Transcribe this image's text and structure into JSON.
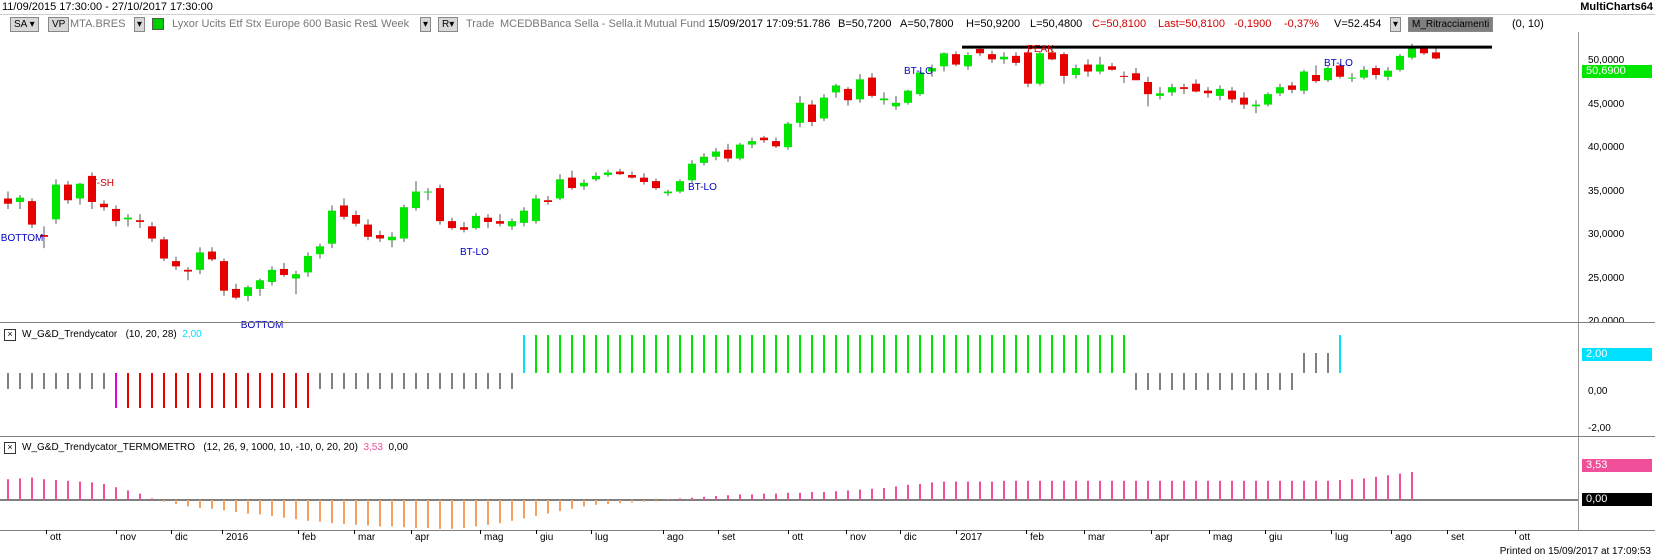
{
  "window": {
    "date_range": "11/09/2015 17:30:00 - 27/10/2017 17:30:00",
    "app_name": "MultiCharts64"
  },
  "toolbar": {
    "sa_label": "SA",
    "vp_label": "VP",
    "symbol": "MTA.BRES",
    "instrument": "Lyxor Ucits Etf Stx Europe 600 Basic Res",
    "period": "1 Week",
    "r_label": "R",
    "trade": "Trade",
    "exchange": "MCEDB",
    "broker": "Banca Sella - Sella.it",
    "fund": "Mutual Fund",
    "datetime": "15/09/2017  17:09:51.786",
    "bid": "B=50,7200",
    "ask": "A=50,7800",
    "high": "H=50,9200",
    "low": "L=50,4800",
    "close": "C=50,8100",
    "last": "Last=50,8100",
    "change": "-0,1900",
    "change_pct": "-0,37%",
    "volume": "V=52.454",
    "indicator": "M_Ritracciamenti",
    "indicator_params": "(0, 10)"
  },
  "main_pane": {
    "y_labels": [
      "50,0000",
      "45,0000",
      "40,0000",
      "35,0000",
      "30,0000",
      "25,0000",
      "20,0000"
    ],
    "last_price_badge": "50,6900",
    "annotations": [
      {
        "text": "T-SH",
        "color": "#d00000"
      },
      {
        "text": "BOTTOM",
        "color": "#0000c0"
      },
      {
        "text": "BOTTOM",
        "color": "#0000c0"
      },
      {
        "text": "BT-LO",
        "color": "#0000c0"
      },
      {
        "text": "BT-LO",
        "color": "#0000c0"
      },
      {
        "text": "BT-LO",
        "color": "#0000c0"
      },
      {
        "text": "PEAK",
        "color": "#d00000"
      },
      {
        "text": "BT-LO",
        "color": "#0000c0"
      }
    ]
  },
  "osc1": {
    "name": "W_G&D_Trendycator",
    "params": "(10, 20, 28)",
    "value": "2,00",
    "y_labels": [
      "2,00",
      "0,00",
      "-2,00"
    ]
  },
  "osc2": {
    "name": "W_G&D_Trendycator_TERMOMETRO",
    "params": "(12, 26, 9, 1000, 10, -10, 0, 20, 20)",
    "value": "3,53",
    "value2": "0,00",
    "y_labels": [
      "3,53",
      "0,00"
    ]
  },
  "x_axis": [
    "ott",
    "nov",
    "dic",
    "2016",
    "feb",
    "mar",
    "apr",
    "mag",
    "giu",
    "lug",
    "ago",
    "set",
    "ott",
    "nov",
    "dic",
    "2017",
    "feb",
    "mar",
    "apr",
    "mag",
    "giu",
    "lug",
    "ago",
    "set",
    "ott"
  ],
  "footer": {
    "printed": "Printed on 15/09/2017 at 17:09:53"
  },
  "colors": {
    "up": "#00e600",
    "down": "#e60000",
    "gray": "#808080",
    "cyan": "#00e0ff",
    "magenta": "#e000e0",
    "pink": "#f0509a",
    "orange": "#f5a060"
  },
  "chart_data": {
    "type": "candlestick",
    "price_ylim": [
      20,
      53
    ],
    "candles": [
      [
        34.2,
        35.0,
        33.0,
        33.6
      ],
      [
        33.8,
        34.6,
        33.0,
        34.3
      ],
      [
        33.9,
        34.2,
        30.8,
        31.2
      ],
      [
        30.0,
        31.0,
        28.5,
        29.8
      ],
      [
        31.8,
        36.4,
        31.3,
        35.8
      ],
      [
        35.8,
        36.2,
        33.6,
        34.0
      ],
      [
        34.2,
        36.0,
        33.5,
        35.9
      ],
      [
        36.8,
        37.2,
        33.0,
        33.8
      ],
      [
        33.6,
        34.0,
        32.8,
        33.2
      ],
      [
        33.0,
        33.4,
        31.0,
        31.6
      ],
      [
        31.8,
        32.4,
        31.0,
        32.0
      ],
      [
        31.7,
        32.4,
        30.8,
        31.5
      ],
      [
        31.0,
        31.5,
        29.2,
        29.6
      ],
      [
        29.5,
        29.8,
        27.0,
        27.3
      ],
      [
        27.0,
        27.5,
        26.0,
        26.4
      ],
      [
        26.0,
        26.3,
        24.8,
        25.8
      ],
      [
        26.0,
        28.6,
        25.5,
        28.0
      ],
      [
        28.1,
        28.6,
        27.0,
        27.2
      ],
      [
        27.0,
        27.3,
        23.0,
        23.6
      ],
      [
        23.8,
        24.4,
        22.6,
        22.8
      ],
      [
        23.0,
        24.2,
        22.4,
        24.0
      ],
      [
        23.8,
        25.0,
        23.0,
        24.8
      ],
      [
        24.6,
        26.4,
        24.2,
        26.0
      ],
      [
        26.1,
        26.8,
        25.2,
        25.4
      ],
      [
        25.0,
        25.9,
        23.2,
        25.5
      ],
      [
        25.7,
        28.0,
        25.2,
        27.6
      ],
      [
        27.8,
        29.0,
        27.3,
        28.7
      ],
      [
        29.0,
        33.4,
        28.5,
        32.8
      ],
      [
        33.4,
        34.2,
        31.8,
        32.1
      ],
      [
        32.3,
        32.8,
        31.0,
        31.3
      ],
      [
        31.2,
        31.8,
        29.4,
        29.8
      ],
      [
        30.0,
        30.5,
        29.2,
        29.6
      ],
      [
        29.4,
        30.3,
        28.6,
        29.8
      ],
      [
        29.6,
        33.5,
        29.2,
        33.2
      ],
      [
        33.1,
        36.2,
        32.8,
        35.0
      ],
      [
        35.0,
        35.4,
        34.0,
        35.0
      ],
      [
        35.4,
        35.8,
        31.2,
        31.6
      ],
      [
        31.6,
        32.0,
        30.6,
        30.8
      ],
      [
        30.9,
        31.5,
        30.3,
        30.6
      ],
      [
        30.8,
        32.5,
        30.6,
        32.2
      ],
      [
        32.0,
        32.4,
        30.8,
        31.5
      ],
      [
        31.6,
        32.4,
        31.0,
        31.3
      ],
      [
        31.0,
        31.9,
        30.6,
        31.6
      ],
      [
        31.4,
        33.2,
        31.0,
        32.8
      ],
      [
        31.6,
        34.6,
        31.3,
        34.2
      ],
      [
        34.0,
        34.5,
        33.5,
        33.8
      ],
      [
        34.2,
        37.0,
        34.0,
        36.4
      ],
      [
        36.6,
        37.4,
        35.2,
        35.4
      ],
      [
        35.6,
        36.4,
        35.2,
        36.0
      ],
      [
        36.4,
        37.2,
        36.2,
        36.8
      ],
      [
        36.9,
        37.5,
        36.7,
        37.2
      ],
      [
        37.3,
        37.6,
        36.9,
        37.0
      ],
      [
        36.9,
        37.3,
        36.5,
        36.6
      ],
      [
        36.6,
        37.1,
        35.8,
        36.1
      ],
      [
        36.2,
        36.5,
        35.2,
        35.4
      ],
      [
        34.8,
        35.2,
        34.5,
        35.0
      ],
      [
        35.0,
        36.4,
        34.8,
        36.2
      ],
      [
        36.3,
        38.6,
        36.0,
        38.2
      ],
      [
        38.3,
        39.4,
        38.0,
        39.0
      ],
      [
        39.0,
        40.0,
        38.6,
        39.6
      ],
      [
        39.8,
        40.5,
        38.4,
        38.8
      ],
      [
        38.8,
        40.6,
        38.6,
        40.4
      ],
      [
        40.4,
        41.2,
        40.0,
        40.8
      ],
      [
        41.2,
        41.4,
        40.6,
        40.9
      ],
      [
        40.8,
        41.2,
        40.0,
        40.2
      ],
      [
        40.1,
        43.0,
        39.8,
        42.8
      ],
      [
        42.9,
        46.0,
        42.4,
        45.2
      ],
      [
        45.0,
        45.5,
        42.5,
        43.0
      ],
      [
        43.4,
        46.2,
        43.1,
        45.8
      ],
      [
        46.4,
        47.4,
        45.8,
        47.2
      ],
      [
        46.8,
        47.0,
        44.9,
        45.5
      ],
      [
        45.6,
        48.5,
        45.2,
        47.9
      ],
      [
        48.1,
        48.6,
        45.8,
        46.0
      ],
      [
        45.5,
        46.4,
        45.0,
        45.7
      ],
      [
        44.8,
        46.0,
        44.4,
        45.2
      ],
      [
        45.2,
        46.7,
        45.0,
        46.6
      ],
      [
        46.2,
        48.8,
        46.0,
        48.7
      ],
      [
        48.8,
        49.6,
        48.2,
        49.2
      ],
      [
        49.4,
        51.0,
        48.8,
        50.9
      ],
      [
        50.8,
        51.1,
        49.4,
        49.6
      ],
      [
        49.4,
        51.0,
        49.0,
        50.7
      ],
      [
        51.4,
        51.7,
        50.6,
        50.9
      ],
      [
        50.8,
        51.2,
        49.8,
        50.2
      ],
      [
        50.2,
        51.0,
        49.7,
        50.5
      ],
      [
        50.6,
        51.0,
        49.5,
        49.8
      ],
      [
        51.0,
        51.2,
        47.0,
        47.4
      ],
      [
        47.4,
        51.1,
        47.2,
        50.9
      ],
      [
        51.0,
        51.4,
        50.1,
        50.2
      ],
      [
        50.8,
        51.0,
        47.4,
        48.3
      ],
      [
        48.4,
        49.6,
        48.0,
        49.2
      ],
      [
        49.6,
        50.2,
        48.2,
        48.8
      ],
      [
        48.8,
        50.5,
        48.5,
        49.6
      ],
      [
        49.4,
        49.8,
        48.9,
        49.0
      ],
      [
        48.3,
        48.8,
        47.5,
        48.2
      ],
      [
        48.6,
        49.2,
        47.8,
        47.8
      ],
      [
        47.6,
        48.2,
        44.8,
        46.2
      ],
      [
        46.0,
        47.0,
        45.6,
        46.3
      ],
      [
        46.4,
        47.4,
        46.0,
        47.0
      ],
      [
        47.0,
        47.4,
        46.2,
        46.8
      ],
      [
        47.4,
        47.9,
        46.4,
        46.5
      ],
      [
        46.6,
        47.0,
        45.8,
        46.3
      ],
      [
        46.0,
        47.2,
        45.5,
        46.8
      ],
      [
        46.6,
        47.0,
        45.2,
        45.6
      ],
      [
        45.8,
        46.4,
        44.5,
        45.0
      ],
      [
        44.8,
        45.5,
        44.0,
        45.0
      ],
      [
        45.0,
        46.4,
        44.8,
        46.2
      ],
      [
        46.3,
        47.4,
        46.0,
        47.0
      ],
      [
        47.2,
        47.6,
        46.3,
        46.7
      ],
      [
        46.6,
        49.0,
        46.2,
        48.8
      ],
      [
        48.4,
        49.5,
        47.5,
        47.7
      ],
      [
        47.8,
        49.4,
        47.6,
        49.2
      ],
      [
        49.5,
        49.7,
        48.0,
        48.2
      ],
      [
        48.0,
        48.6,
        47.6,
        48.1
      ],
      [
        48.1,
        49.4,
        47.9,
        49.0
      ],
      [
        49.2,
        49.5,
        47.9,
        48.4
      ],
      [
        48.2,
        49.3,
        47.8,
        48.9
      ],
      [
        49.0,
        50.8,
        48.8,
        50.6
      ],
      [
        50.4,
        52.0,
        50.2,
        51.6
      ],
      [
        51.5,
        51.8,
        50.7,
        50.9
      ],
      [
        51.0,
        51.5,
        50.2,
        50.3
      ]
    ],
    "osc1_states": [
      "g",
      "g",
      "g",
      "g",
      "g",
      "g",
      "g",
      "g",
      "g",
      "m",
      "r",
      "r",
      "r",
      "r",
      "r",
      "r",
      "r",
      "r",
      "r",
      "r",
      "r",
      "r",
      "r",
      "r",
      "r",
      "r",
      "g",
      "g",
      "g",
      "g",
      "g",
      "g",
      "g",
      "g",
      "g",
      "g",
      "g",
      "g",
      "g",
      "g",
      "g",
      "g",
      "g",
      "c",
      "u",
      "u",
      "u",
      "u",
      "u",
      "u",
      "u",
      "u",
      "u",
      "u",
      "u",
      "u",
      "u",
      "u",
      "u",
      "u",
      "u",
      "u",
      "u",
      "u",
      "u",
      "u",
      "u",
      "u",
      "u",
      "u",
      "u",
      "u",
      "u",
      "u",
      "u",
      "u",
      "u",
      "u",
      "u",
      "u",
      "u",
      "u",
      "u",
      "u",
      "u",
      "u",
      "u",
      "u",
      "u",
      "u",
      "u",
      "u",
      "u",
      "u",
      "n",
      "n",
      "n",
      "n",
      "n",
      "n",
      "n",
      "n",
      "n",
      "n",
      "n",
      "n",
      "n",
      "n",
      "p",
      "p",
      "p",
      "c"
    ],
    "osc2_values": [
      2.6,
      2.7,
      2.8,
      2.6,
      2.5,
      2.4,
      2.3,
      2.2,
      2.0,
      1.6,
      1.2,
      0.8,
      0.2,
      -0.2,
      -0.5,
      -0.8,
      -1.0,
      -1.1,
      -1.3,
      -1.5,
      -1.7,
      -1.8,
      -2.0,
      -2.2,
      -2.4,
      -2.6,
      -2.7,
      -2.9,
      -3.0,
      -3.1,
      -3.2,
      -3.3,
      -3.3,
      -3.4,
      -3.5,
      -3.5,
      -3.6,
      -3.6,
      -3.5,
      -3.3,
      -3.1,
      -2.9,
      -2.6,
      -2.3,
      -2.0,
      -1.7,
      -1.4,
      -1.1,
      -0.8,
      -0.6,
      -0.5,
      -0.4,
      -0.3,
      -0.2,
      -0.2,
      0.1,
      0.2,
      0.3,
      0.4,
      0.5,
      0.6,
      0.7,
      0.7,
      0.8,
      0.8,
      0.9,
      0.9,
      1.0,
      1.0,
      1.1,
      1.2,
      1.3,
      1.4,
      1.5,
      1.7,
      1.9,
      2.0,
      2.2,
      2.3,
      2.3,
      2.3,
      2.3,
      2.3,
      2.4,
      2.4,
      2.4,
      2.4,
      2.4,
      2.4,
      2.4,
      2.4,
      2.4,
      2.4,
      2.4,
      2.4,
      2.4,
      2.4,
      2.4,
      2.4,
      2.4,
      2.4,
      2.4,
      2.4,
      2.4,
      2.4,
      2.4,
      2.4,
      2.4,
      2.4,
      2.4,
      2.4,
      2.5,
      2.6,
      2.7,
      2.9,
      3.1,
      3.3,
      3.5
    ]
  }
}
